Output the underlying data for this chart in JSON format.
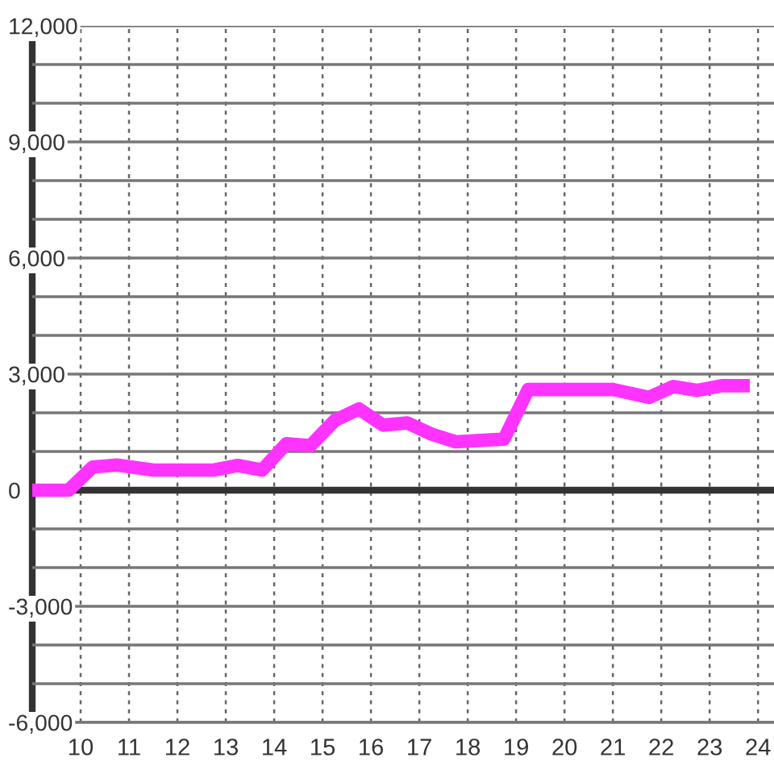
{
  "chart_data": {
    "type": "line",
    "x": [
      9.0,
      9.75,
      10.25,
      10.75,
      11.5,
      12.75,
      13.25,
      13.75,
      14.25,
      14.75,
      15.25,
      15.75,
      16.25,
      16.75,
      17.25,
      17.75,
      18.75,
      19.25,
      21.0,
      21.75,
      22.25,
      22.75,
      23.25,
      23.83
    ],
    "series": [
      {
        "color": "#ff33ff",
        "line_style": "solid",
        "values": [
          0,
          0,
          600,
          650,
          520,
          520,
          640,
          520,
          1200,
          1150,
          1800,
          2100,
          1680,
          1740,
          1450,
          1250,
          1320,
          2600,
          2600,
          2400,
          2680,
          2580,
          2700,
          2700
        ]
      }
    ],
    "xlim": [
      9,
      24.33
    ],
    "xticks": [
      10,
      11,
      12,
      13,
      14,
      15,
      16,
      17,
      18,
      19,
      20,
      21,
      22,
      23,
      24
    ],
    "ylim": [
      -6000,
      12000
    ],
    "yticks": [
      {
        "value": -6000,
        "label": "-6,000"
      },
      {
        "value": -5000,
        "label": null
      },
      {
        "value": -4000,
        "label": null
      },
      {
        "value": -3000,
        "label": "-3,000"
      },
      {
        "value": -2000,
        "label": null
      },
      {
        "value": -1000,
        "label": null
      },
      0,
      {
        "value": 1000,
        "label": null
      },
      {
        "value": 2000,
        "label": null
      },
      {
        "value": 3000,
        "label": "3,000"
      },
      {
        "value": 4000,
        "label": null
      },
      {
        "value": 5000,
        "label": null
      },
      {
        "value": 6000,
        "label": "6,000"
      },
      {
        "value": 7000,
        "label": null
      },
      {
        "value": 8000,
        "label": null
      },
      {
        "value": 9000,
        "label": "9,000"
      },
      {
        "value": 10000,
        "label": null
      },
      {
        "value": 11000,
        "label": null
      },
      {
        "value": 12000,
        "label": "12,000"
      }
    ],
    "grid": true,
    "ref_lines": [
      {
        "axis": "y",
        "value": 0,
        "color": "#333333",
        "line_style": "solid"
      }
    ]
  }
}
